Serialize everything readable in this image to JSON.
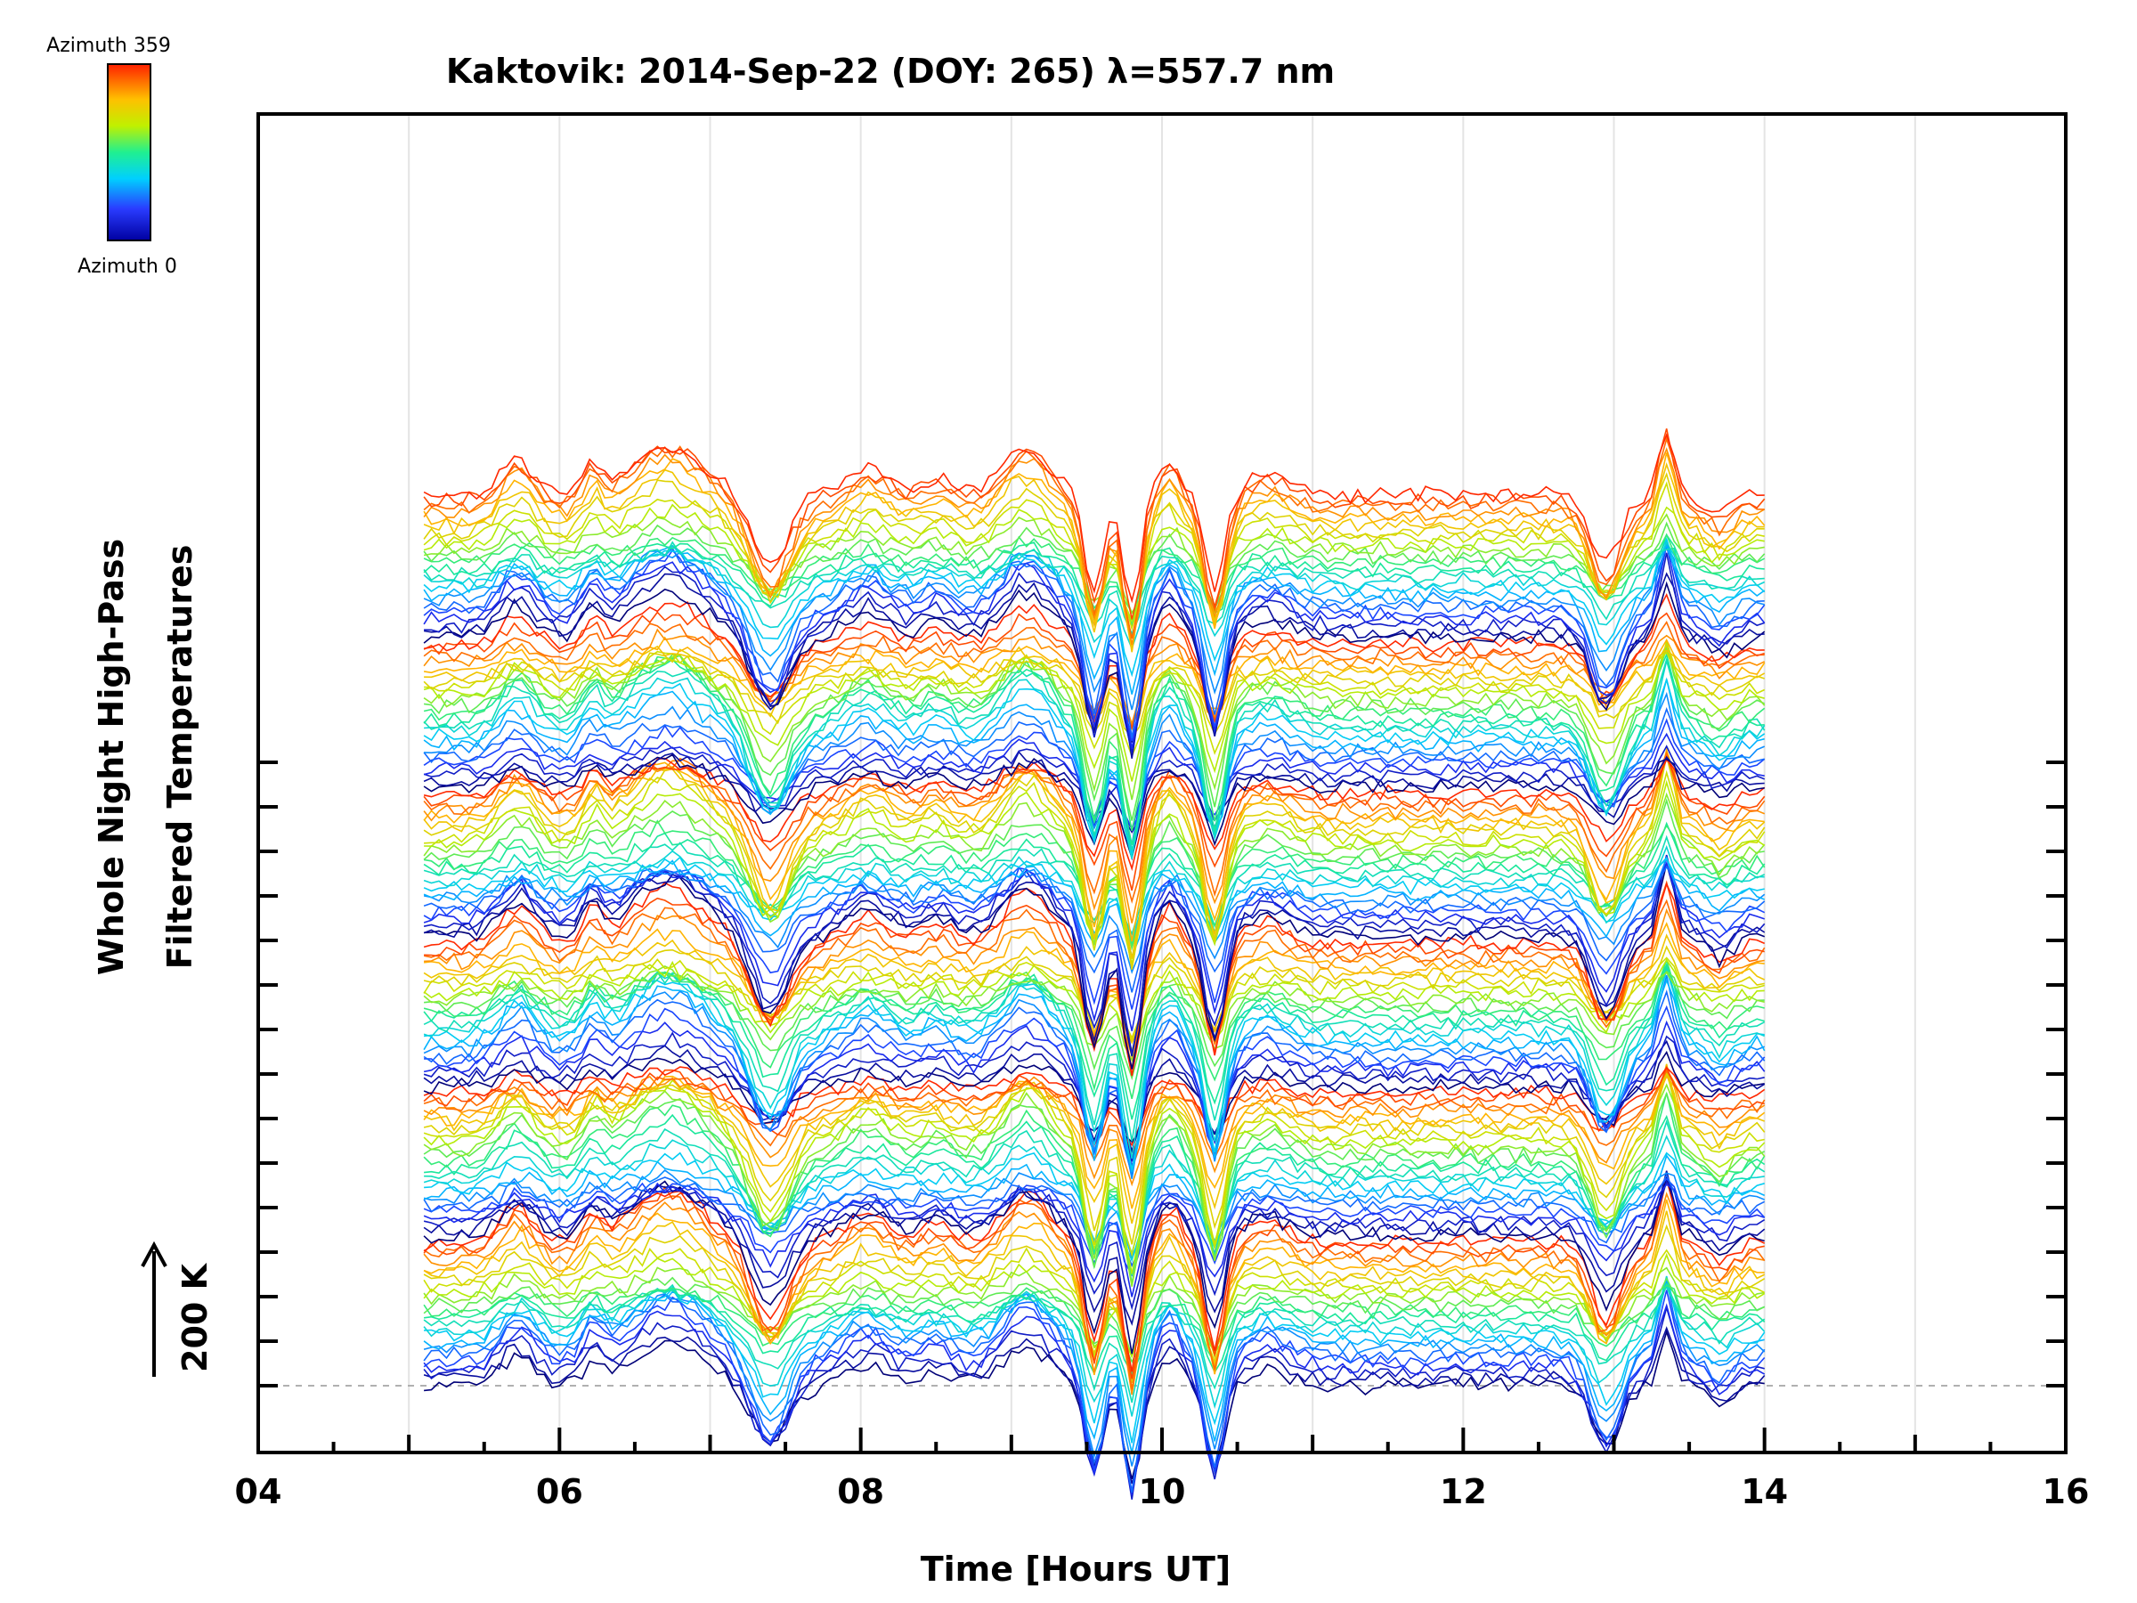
{
  "chart_data": {
    "type": "line",
    "title": "Kaktovik: 2014-Sep-22 (DOY: 265) λ=557.7 nm",
    "xlabel": "Time [Hours UT]",
    "ylabel_line1": "Whole Night High-Pass",
    "ylabel_line2": "Filtered Temperatures",
    "scale_label": "200 K",
    "xlim": [
      4,
      16
    ],
    "x_ticks": [
      "04",
      "06",
      "08",
      "10",
      "12",
      "14",
      "16"
    ],
    "data_range": [
      5.1,
      14.0
    ],
    "y_baseline": 0,
    "trace_count": 144,
    "traces_per_group": 24,
    "series_offset_K": 14,
    "legend": {
      "top_label": "Azimuth 359",
      "bottom_label": "Azimuth 0",
      "min": 0,
      "max": 359
    },
    "features": [
      {
        "t": 5.72,
        "a": 70,
        "w": 0.16
      },
      {
        "t": 6.22,
        "a": 55,
        "w": 0.09
      },
      {
        "t": 6.72,
        "a": 105,
        "w": 0.34
      },
      {
        "t": 7.4,
        "a": -150,
        "w": 0.17
      },
      {
        "t": 8.05,
        "a": 55,
        "w": 0.2
      },
      {
        "t": 8.5,
        "a": 35,
        "w": 0.15
      },
      {
        "t": 9.1,
        "a": 95,
        "w": 0.22
      },
      {
        "t": 9.55,
        "a": -210,
        "w": 0.09
      },
      {
        "t": 9.8,
        "a": -250,
        "w": 0.08
      },
      {
        "t": 10.05,
        "a": 70,
        "w": 0.1
      },
      {
        "t": 10.35,
        "a": -210,
        "w": 0.09
      },
      {
        "t": 10.7,
        "a": 40,
        "w": 0.2
      },
      {
        "t": 12.95,
        "a": -150,
        "w": 0.14
      },
      {
        "t": 13.35,
        "a": 130,
        "w": 0.07
      },
      {
        "t": 13.7,
        "a": -40,
        "w": 0.12
      }
    ]
  }
}
